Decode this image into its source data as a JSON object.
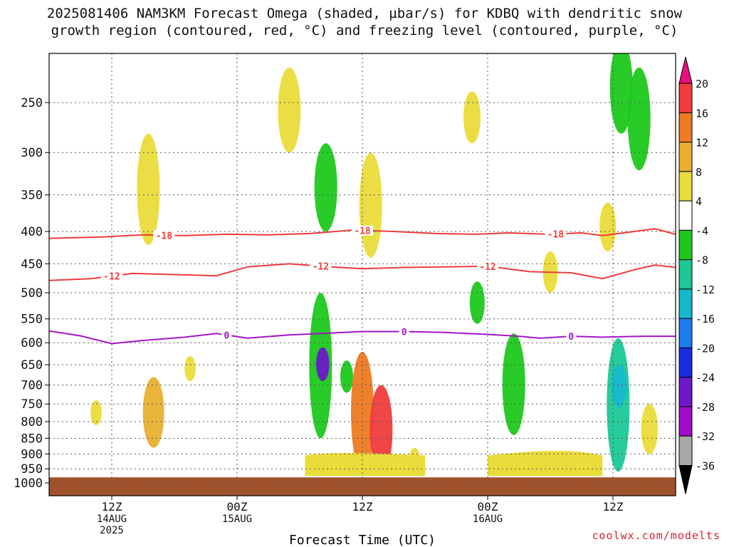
{
  "title_line1": "2025081406 NAM3KM Forecast Omega (shaded, µbar/s) for KDBQ with dendritic snow",
  "title_line2": "growth region (contoured, red, °C) and freezing level (contoured, purple, °C)",
  "credit": "coolwx.com/modelts",
  "chart_data": {
    "type": "time-height cross section",
    "xlabel": "Forecast Time (UTC)",
    "y_ticks": [
      250,
      300,
      350,
      400,
      450,
      500,
      550,
      600,
      650,
      700,
      750,
      800,
      850,
      900,
      950,
      1000
    ],
    "y_scale": "log-pressure (hPa, inverted)",
    "x_ticks": [
      {
        "hour": 6,
        "lines": [
          "12Z",
          "14AUG",
          "2025"
        ]
      },
      {
        "hour": 18,
        "lines": [
          "00Z",
          "15AUG"
        ]
      },
      {
        "hour": 30,
        "lines": [
          "12Z"
        ]
      },
      {
        "hour": 42,
        "lines": [
          "00Z",
          "16AUG"
        ]
      },
      {
        "hour": 54,
        "lines": [
          "12Z"
        ]
      }
    ],
    "x_range_hours": [
      0,
      60
    ],
    "colorbar": {
      "labels": [
        "20",
        "16",
        "12",
        "8",
        "4",
        "-4",
        "-8",
        "-12",
        "-16",
        "-20",
        "-24",
        "-28",
        "-32",
        "-36"
      ],
      "colors": [
        "#e8107a",
        "#f03c3c",
        "#ee7a22",
        "#e8b030",
        "#eadc3a",
        "#ffffff",
        "#1cc81c",
        "#1cc896",
        "#16b8cc",
        "#1c7cee",
        "#1c2ce0",
        "#6c18c8",
        "#a00cc8",
        "#a8a8a8",
        "#000000"
      ]
    },
    "contours": [
      {
        "name": "-18",
        "color": "#ee3c3c",
        "label_hours": [
          11,
          30,
          48.5
        ],
        "points": [
          [
            0,
            410
          ],
          [
            5,
            408
          ],
          [
            9,
            405
          ],
          [
            13,
            406
          ],
          [
            17,
            404
          ],
          [
            21,
            405
          ],
          [
            25,
            403
          ],
          [
            29,
            398
          ],
          [
            33,
            400
          ],
          [
            37,
            403
          ],
          [
            41,
            404
          ],
          [
            44,
            402
          ],
          [
            48,
            404
          ],
          [
            51,
            402
          ],
          [
            53,
            406
          ],
          [
            55,
            402
          ],
          [
            58,
            396
          ],
          [
            60,
            404
          ]
        ]
      },
      {
        "name": "-12",
        "color": "#ee3c3c",
        "label_hours": [
          6,
          26,
          42
        ],
        "points": [
          [
            0,
            478
          ],
          [
            4,
            475
          ],
          [
            8,
            466
          ],
          [
            12,
            468
          ],
          [
            16,
            470
          ],
          [
            19,
            455
          ],
          [
            23,
            450
          ],
          [
            27,
            455
          ],
          [
            30,
            458
          ],
          [
            34,
            456
          ],
          [
            38,
            455
          ],
          [
            42,
            454
          ],
          [
            46,
            463
          ],
          [
            50,
            465
          ],
          [
            53,
            475
          ],
          [
            56,
            460
          ],
          [
            58,
            452
          ],
          [
            60,
            456
          ]
        ]
      },
      {
        "name": "0",
        "color": "#a416c8",
        "label_hours": [
          17,
          34,
          50
        ],
        "points": [
          [
            0,
            575
          ],
          [
            3,
            585
          ],
          [
            6,
            602
          ],
          [
            9,
            595
          ],
          [
            13,
            588
          ],
          [
            16,
            580
          ],
          [
            19,
            590
          ],
          [
            23,
            583
          ],
          [
            26,
            580
          ],
          [
            30,
            576
          ],
          [
            34,
            576
          ],
          [
            38,
            578
          ],
          [
            42,
            582
          ],
          [
            45,
            586
          ],
          [
            47,
            590
          ],
          [
            50,
            586
          ],
          [
            53,
            588
          ],
          [
            57,
            586
          ],
          [
            60,
            586
          ]
        ]
      }
    ],
    "omega_shading": [
      {
        "hour": 9.5,
        "p": [
          280,
          420
        ],
        "value": 4
      },
      {
        "hour": 4.5,
        "p": [
          740,
          810
        ],
        "value": 4
      },
      {
        "hour": 10,
        "p": [
          680,
          880
        ],
        "value": 8
      },
      {
        "hour": 13.5,
        "p": [
          630,
          690
        ],
        "value": 4
      },
      {
        "hour": 23,
        "p": [
          220,
          300
        ],
        "value": 4
      },
      {
        "hour": 26,
        "p": [
          500,
          850
        ],
        "value": -8
      },
      {
        "hour": 26.2,
        "p": [
          610,
          690
        ],
        "value": -28
      },
      {
        "hour": 26.5,
        "p": [
          290,
          400
        ],
        "value": -8
      },
      {
        "hour": 28.5,
        "p": [
          640,
          720
        ],
        "value": -8
      },
      {
        "hour": 30.8,
        "p": [
          300,
          440
        ],
        "value": 4
      },
      {
        "hour": 30,
        "p": [
          620,
          960
        ],
        "value": 12
      },
      {
        "hour": 31.8,
        "p": [
          700,
          970
        ],
        "value": 16
      },
      {
        "hour": 41,
        "p": [
          480,
          560
        ],
        "value": -8
      },
      {
        "hour": 44.5,
        "p": [
          580,
          840
        ],
        "value": -8
      },
      {
        "hour": 54.5,
        "p": [
          590,
          960
        ],
        "value": -12
      },
      {
        "hour": 54.6,
        "p": [
          650,
          760
        ],
        "value": -16
      },
      {
        "hour": 56.5,
        "p": [
          220,
          320
        ],
        "value": -8
      },
      {
        "hour": 54.8,
        "p": [
          200,
          280
        ],
        "value": -8
      },
      {
        "hour": 53.5,
        "p": [
          360,
          430
        ],
        "value": 4
      },
      {
        "hour": 48,
        "p": [
          430,
          500
        ],
        "value": 4
      },
      {
        "hour": 40.5,
        "p": [
          240,
          290
        ],
        "value": 4
      },
      {
        "hour": 57.5,
        "p": [
          750,
          900
        ],
        "value": 4
      },
      {
        "hour": 35,
        "p": [
          880,
          970
        ],
        "value": 4
      }
    ],
    "ground_level_hpa": 980
  }
}
